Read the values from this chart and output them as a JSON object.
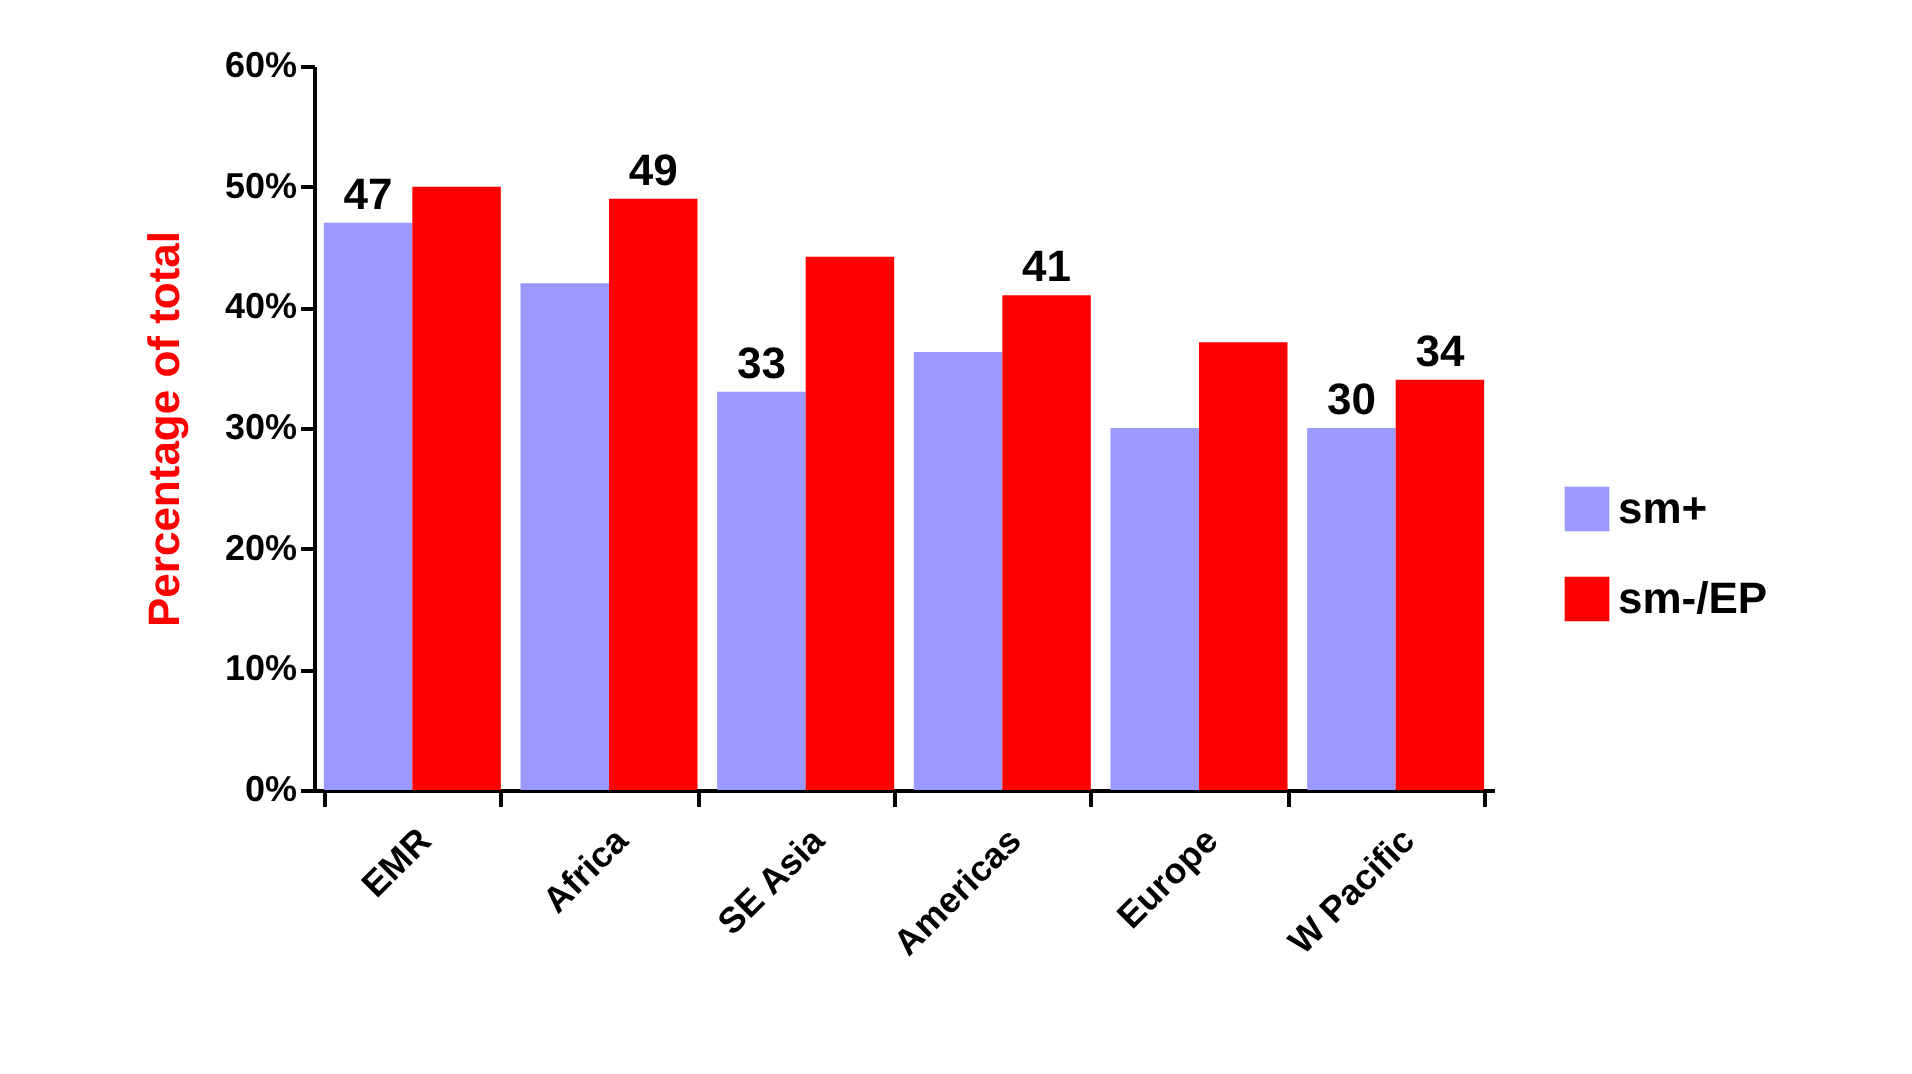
{
  "chart_data": {
    "type": "bar",
    "ylabel": "Percentage of total",
    "categories": [
      "EMR",
      "Africa",
      "SE Asia",
      "Americas",
      "Europe",
      "W Pacific"
    ],
    "series": [
      {
        "name": "sm+",
        "color": "#9999ff",
        "values": [
          47,
          42,
          33,
          36.3,
          30,
          30
        ],
        "value_labels": [
          "47",
          null,
          "33",
          null,
          null,
          "30"
        ]
      },
      {
        "name": "sm-/EP",
        "color": "#ff0000",
        "values": [
          50,
          49,
          44.2,
          41,
          37.1,
          34
        ],
        "value_labels": [
          null,
          "49",
          null,
          "41",
          null,
          "34"
        ]
      }
    ],
    "ylim": [
      0,
      60
    ],
    "yticks": [
      {
        "value": 0,
        "label": "0%"
      },
      {
        "value": 10,
        "label": "10%"
      },
      {
        "value": 20,
        "label": "20%"
      },
      {
        "value": 30,
        "label": "30%"
      },
      {
        "value": 40,
        "label": "40%"
      },
      {
        "value": 50,
        "label": "50%"
      },
      {
        "value": 60,
        "label": "60%"
      }
    ],
    "grid": false,
    "legend": "right"
  }
}
